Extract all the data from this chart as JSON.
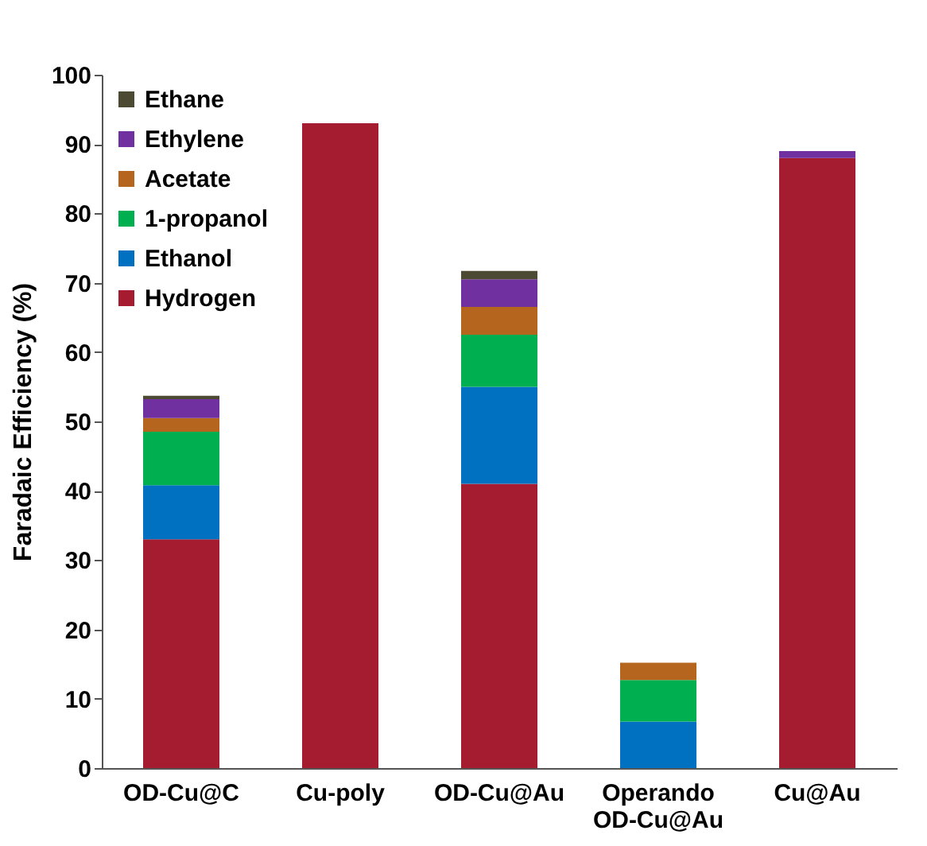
{
  "chart_data": {
    "type": "bar",
    "stacked": true,
    "ylabel": "Faradaic Efficiency (%)",
    "categories": [
      "OD-Cu@C",
      "Cu-poly",
      "OD-Cu@Au",
      "Operando\nOD-Cu@Au",
      "Cu@Au"
    ],
    "series": [
      {
        "name": "Hydrogen",
        "color": "#a51c30",
        "values": [
          33,
          93,
          41,
          0,
          88
        ]
      },
      {
        "name": "Ethanol",
        "color": "#0070c0",
        "values": [
          7.8,
          0,
          14,
          6.7,
          0
        ]
      },
      {
        "name": "1-propanol",
        "color": "#00b050",
        "values": [
          7.7,
          0,
          7.5,
          6,
          0
        ]
      },
      {
        "name": "Acetate",
        "color": "#b5651d",
        "values": [
          2,
          0,
          4,
          2.5,
          0
        ]
      },
      {
        "name": "Ethylene",
        "color": "#7030a0",
        "values": [
          2.7,
          0,
          4,
          0,
          1
        ]
      },
      {
        "name": "Ethane",
        "color": "#4d4a33",
        "values": [
          0.5,
          0,
          1.2,
          0,
          0
        ]
      }
    ],
    "ylim": [
      0,
      100
    ],
    "yticks": [
      0,
      10,
      20,
      30,
      40,
      50,
      60,
      70,
      80,
      90,
      100
    ],
    "legend": "top left",
    "grid": false
  }
}
